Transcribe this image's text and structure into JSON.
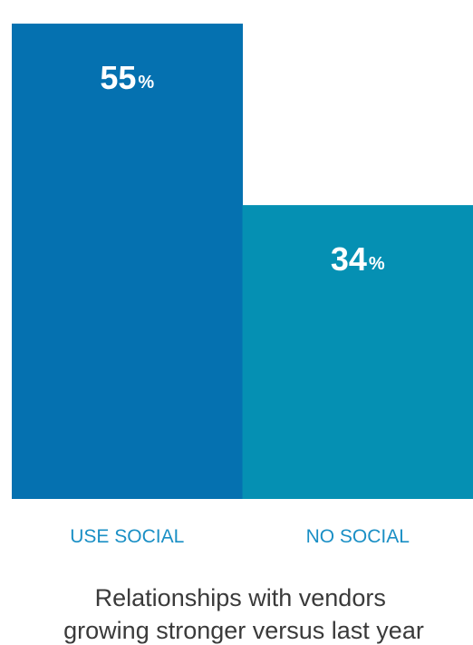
{
  "chart_data": {
    "type": "bar",
    "categories": [
      "USE SOCIAL",
      "NO SOCIAL"
    ],
    "values": [
      55,
      34
    ],
    "value_labels": [
      "55",
      "34"
    ],
    "value_unit": "%",
    "bar_colors": [
      "#0571b0",
      "#0590b3"
    ],
    "category_label_color": "#1a8fc5",
    "caption": [
      "Relationships with vendors",
      "growing stronger versus last year"
    ],
    "ylim": [
      0,
      57
    ],
    "grid": false,
    "legend": "none"
  }
}
